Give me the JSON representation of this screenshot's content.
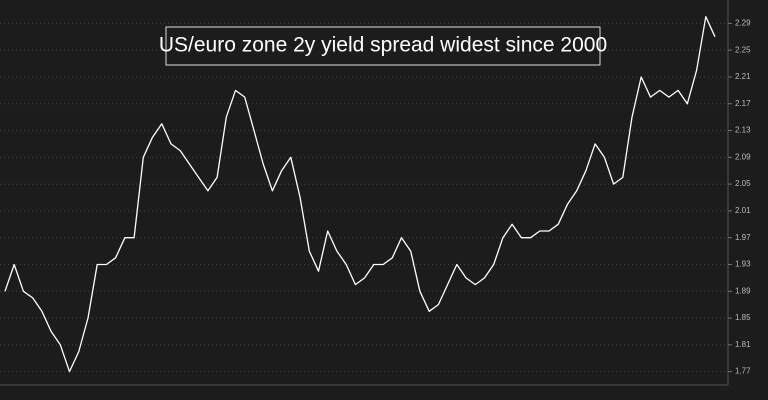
{
  "chart_data": {
    "type": "line",
    "title": "US/euro zone 2y yield spread widest since 2000",
    "categories": [
      null,
      null,
      null,
      null,
      null,
      null,
      null,
      null,
      null,
      null,
      null,
      null,
      null,
      null,
      null,
      null,
      null,
      null,
      null,
      null,
      null,
      null,
      null,
      null,
      null,
      null,
      null,
      null,
      null,
      null,
      null,
      null,
      null,
      null,
      null,
      null,
      null,
      null,
      null,
      null,
      null,
      null,
      null,
      null,
      null,
      null,
      null,
      null,
      null,
      null,
      null,
      null,
      null,
      null,
      null,
      null,
      null,
      null,
      null,
      null,
      null,
      null,
      null,
      null,
      null,
      null,
      null,
      null,
      null,
      null,
      null,
      null,
      null,
      null,
      null,
      null,
      null,
      null
    ],
    "series": [
      {
        "color": "#ffffff",
        "values": [
          1.89,
          1.93,
          1.89,
          1.88,
          1.86,
          1.83,
          1.81,
          1.77,
          1.8,
          1.85,
          1.93,
          1.93,
          1.94,
          1.97,
          1.97,
          2.09,
          2.12,
          2.14,
          2.11,
          2.1,
          2.08,
          2.06,
          2.04,
          2.06,
          2.15,
          2.19,
          2.18,
          2.13,
          2.08,
          2.04,
          2.07,
          2.09,
          2.03,
          1.95,
          1.92,
          1.98,
          1.95,
          1.93,
          1.9,
          1.91,
          1.93,
          1.93,
          1.94,
          1.97,
          1.95,
          1.89,
          1.86,
          1.87,
          1.9,
          1.93,
          1.91,
          1.9,
          1.91,
          1.93,
          1.97,
          1.99,
          1.97,
          1.97,
          1.98,
          1.98,
          1.99,
          2.02,
          2.04,
          2.07,
          2.11,
          2.09,
          2.05,
          2.06,
          2.15,
          2.21,
          2.18,
          2.19,
          2.18,
          2.19,
          2.17,
          2.22,
          2.3,
          2.27
        ]
      }
    ],
    "ylim": [
      1.75,
      2.31
    ],
    "yticks": [
      1.77,
      1.81,
      1.85,
      1.89,
      1.93,
      1.97,
      2.01,
      2.05,
      2.09,
      2.13,
      2.17,
      2.21,
      2.25,
      2.29
    ],
    "grid": true
  }
}
